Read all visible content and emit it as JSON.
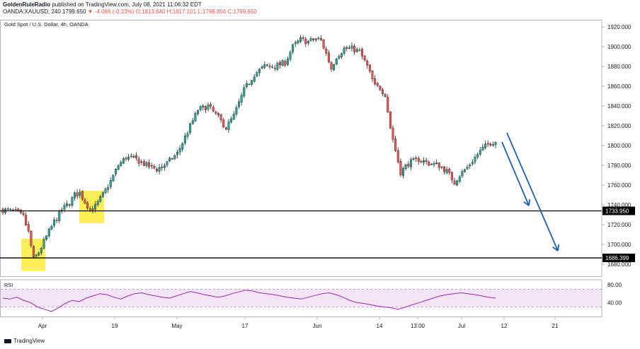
{
  "header": {
    "author": "GoldenRuleRadio",
    "published_text": "published on TradingView.com, July 08, 2021 11:06:32 EDT",
    "symbol_line": "OANDA:XAUUSD, 240",
    "last": "1799.650",
    "change": "▼ -4.066 (-0.23%)",
    "ohlc": "O:1813.640 H:1817.101 L:1798.856 C:1799.650"
  },
  "footer": {
    "brand": "TradingView"
  },
  "colors": {
    "up": "#26a69a",
    "down": "#ef5350",
    "candle": "#222222",
    "highlight": "#ffeb3b",
    "arrow": "#1e5fb4",
    "rsi_line": "#9c27b0",
    "rsi_band": "#f3e5f5",
    "grid": "#f0f3fa"
  },
  "chart_data": {
    "type": "candlestick",
    "title": "Gold Spot / U.S. Dollar, 4h, OANDA",
    "ylim": [
      1662,
      1928
    ],
    "y_ticks": [
      "1920.000",
      "1900.000",
      "1880.000",
      "1860.000",
      "1840.000",
      "1820.000",
      "1800.000",
      "1780.000",
      "1760.000",
      "1740.000",
      "1720.000",
      "1700.000",
      "1680.000"
    ],
    "x_ticks": [
      "Apr",
      "19",
      "May",
      "17",
      "Jun",
      "14",
      "13:00",
      "Jul",
      "12",
      "21"
    ],
    "approx_close_path": [
      [
        0,
        1735
      ],
      [
        5,
        1733
      ],
      [
        8,
        1728
      ],
      [
        10,
        1712
      ],
      [
        12,
        1685
      ],
      [
        14,
        1692
      ],
      [
        17,
        1708
      ],
      [
        20,
        1723
      ],
      [
        23,
        1735
      ],
      [
        26,
        1742
      ],
      [
        28,
        1750
      ],
      [
        30,
        1752
      ],
      [
        32,
        1743
      ],
      [
        34,
        1736
      ],
      [
        36,
        1738
      ],
      [
        39,
        1750
      ],
      [
        42,
        1764
      ],
      [
        45,
        1780
      ],
      [
        48,
        1788
      ],
      [
        52,
        1786
      ],
      [
        56,
        1780
      ],
      [
        60,
        1776
      ],
      [
        64,
        1782
      ],
      [
        68,
        1792
      ],
      [
        72,
        1814
      ],
      [
        76,
        1836
      ],
      [
        80,
        1840
      ],
      [
        84,
        1828
      ],
      [
        87,
        1818
      ],
      [
        90,
        1830
      ],
      [
        94,
        1856
      ],
      [
        98,
        1872
      ],
      [
        102,
        1880
      ],
      [
        106,
        1880
      ],
      [
        110,
        1884
      ],
      [
        113,
        1900
      ],
      [
        116,
        1907
      ],
      [
        119,
        1905
      ],
      [
        122,
        1908
      ],
      [
        124,
        1906
      ],
      [
        126,
        1893
      ],
      [
        128,
        1878
      ],
      [
        130,
        1890
      ],
      [
        133,
        1898
      ],
      [
        136,
        1898
      ],
      [
        139,
        1895
      ],
      [
        142,
        1880
      ],
      [
        145,
        1860
      ],
      [
        147,
        1858
      ],
      [
        149,
        1852
      ],
      [
        151,
        1818
      ],
      [
        153,
        1795
      ],
      [
        155,
        1773
      ],
      [
        158,
        1782
      ],
      [
        162,
        1786
      ],
      [
        166,
        1782
      ],
      [
        170,
        1780
      ],
      [
        173,
        1774
      ],
      [
        176,
        1763
      ],
      [
        178,
        1770
      ],
      [
        181,
        1778
      ],
      [
        184,
        1788
      ],
      [
        187,
        1797
      ],
      [
        190,
        1803
      ],
      [
        192,
        1804
      ]
    ],
    "horizontal_lines": [
      {
        "label": "1733.950",
        "value": 1733.95
      },
      {
        "label": "1686.399",
        "value": 1686.399
      }
    ],
    "rsi": {
      "label": "RSI",
      "y_ticks": [
        "80.00",
        "40.00"
      ],
      "upper": 70,
      "lower": 30,
      "ylim": [
        15,
        85
      ],
      "values": [
        50,
        48,
        52,
        45,
        40,
        30,
        25,
        20,
        28,
        38,
        45,
        42,
        50,
        55,
        60,
        58,
        52,
        48,
        55,
        60,
        62,
        58,
        55,
        52,
        50,
        55,
        60,
        65,
        62,
        58,
        55,
        52,
        55,
        60,
        64,
        68,
        66,
        62,
        60,
        58,
        55,
        52,
        50,
        48,
        52,
        56,
        60,
        62,
        58,
        52,
        45,
        40,
        38,
        35,
        32,
        30,
        28,
        25,
        30,
        35,
        40,
        45,
        50,
        55,
        58,
        60,
        62,
        60,
        58,
        55,
        52,
        50
      ]
    }
  }
}
